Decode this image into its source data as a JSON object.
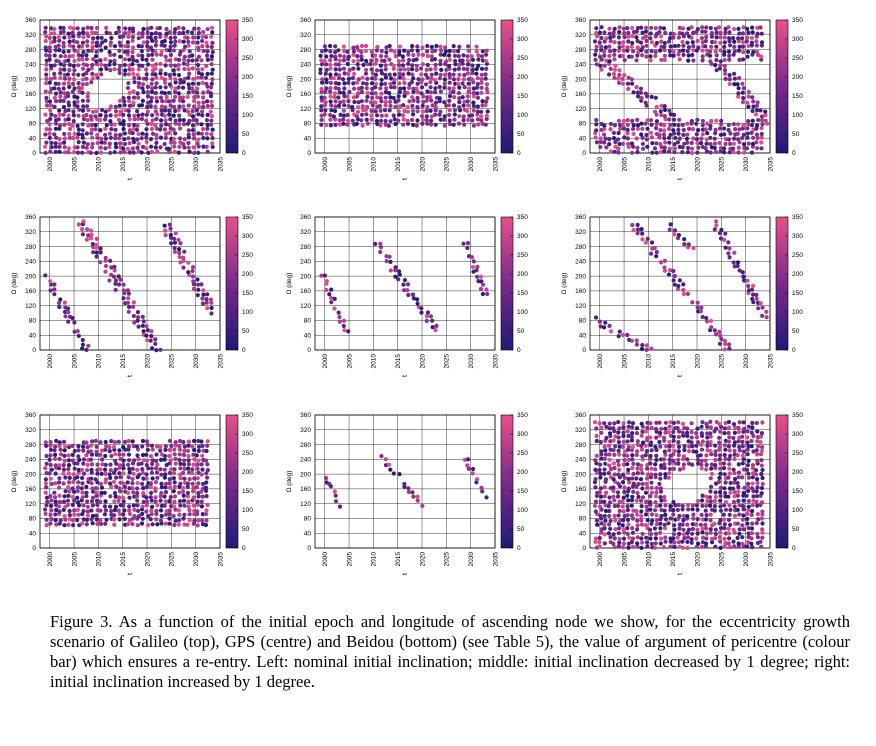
{
  "caption": "Figure 3. As a function of the initial epoch and longitude of ascending node we show, for the eccentricity growth scenario of Galileo (top), GPS (centre) and Beidou (bottom) (see Table 5), the value of argument of pericentre (colour bar) which ensures a re-entry. Left: nominal initial inclination; middle: initial inclination decreased by 1 degree; right: initial inclination increased by 1 degree.",
  "colors": {
    "low": "#1f1a78",
    "mid": "#7a2a8c",
    "high": "#e8508a"
  },
  "chart_data": [
    {
      "type": "scatter",
      "panel": "galileo-nominal",
      "xlabel": "t",
      "ylabel": "Ω (deg)",
      "xticks": [
        "2000",
        "2005",
        "2010",
        "2015",
        "2020",
        "2025",
        "2030",
        "2035"
      ],
      "yticks": [
        "0",
        "40",
        "80",
        "120",
        "160",
        "200",
        "240",
        "280",
        "320",
        "360"
      ],
      "xlim": [
        1998,
        2035
      ],
      "ylim": [
        0,
        360
      ],
      "colorbar": {
        "ticks": [
          "0",
          "50",
          "100",
          "150",
          "200",
          "250",
          "300",
          "350"
        ],
        "range": [
          0,
          350
        ]
      },
      "grid": true,
      "regions": [
        {
          "type": "box",
          "x": [
            1999,
            2034
          ],
          "y": [
            0,
            340
          ]
        }
      ],
      "holes": [
        {
          "type": "ellipse",
          "cx": 2012,
          "cy": 170,
          "rx": 4.5,
          "ry": 40,
          "tilt": -0.6
        }
      ]
    },
    {
      "type": "scatter",
      "panel": "galileo-minus1",
      "xlabel": "t",
      "ylabel": "Ω (deg)",
      "xticks": [
        "2000",
        "2005",
        "2010",
        "2015",
        "2020",
        "2025",
        "2030",
        "2035"
      ],
      "yticks": [
        "0",
        "40",
        "80",
        "120",
        "160",
        "200",
        "240",
        "280",
        "320",
        "360"
      ],
      "xlim": [
        1998,
        2035
      ],
      "ylim": [
        0,
        360
      ],
      "colorbar": {
        "ticks": [
          "0",
          "50",
          "100",
          "150",
          "200",
          "250",
          "300",
          "350"
        ],
        "range": [
          0,
          350
        ]
      },
      "grid": true,
      "regions": [
        {
          "type": "box",
          "x": [
            1999,
            2034
          ],
          "y": [
            70,
            290
          ]
        }
      ],
      "holes": []
    },
    {
      "type": "scatter",
      "panel": "galileo-plus1",
      "xlabel": "t",
      "ylabel": "Ω (deg)",
      "xticks": [
        "2000",
        "2005",
        "2010",
        "2015",
        "2020",
        "2025",
        "2030",
        "2035"
      ],
      "yticks": [
        "0",
        "40",
        "80",
        "120",
        "160",
        "200",
        "240",
        "280",
        "320",
        "360"
      ],
      "xlim": [
        1998,
        2035
      ],
      "ylim": [
        0,
        360
      ],
      "colorbar": {
        "ticks": [
          "0",
          "50",
          "100",
          "150",
          "200",
          "250",
          "300",
          "350"
        ],
        "range": [
          0,
          350
        ]
      },
      "grid": true,
      "regions": [
        {
          "type": "box",
          "x": [
            1999,
            2034
          ],
          "y": [
            0,
            90
          ]
        },
        {
          "type": "box",
          "x": [
            1999,
            2034
          ],
          "y": [
            250,
            345
          ]
        },
        {
          "type": "band",
          "p1": [
            2000,
            250
          ],
          "p2": [
            2015,
            90
          ],
          "w": 35
        },
        {
          "type": "band",
          "p1": [
            2024,
            250
          ],
          "p2": [
            2034,
            90
          ],
          "w": 35
        }
      ],
      "holes": []
    },
    {
      "type": "scatter",
      "panel": "gps-nominal",
      "xlabel": "t",
      "ylabel": "Ω (deg)",
      "xticks": [
        "2000",
        "2005",
        "2010",
        "2015",
        "2020",
        "2025",
        "2030",
        "2035"
      ],
      "yticks": [
        "0",
        "40",
        "80",
        "120",
        "160",
        "200",
        "240",
        "280",
        "320",
        "360"
      ],
      "xlim": [
        1998,
        2035
      ],
      "ylim": [
        0,
        360
      ],
      "colorbar": {
        "ticks": [
          "0",
          "50",
          "100",
          "150",
          "200",
          "250",
          "300",
          "350"
        ],
        "range": [
          0,
          350
        ]
      },
      "grid": true,
      "regions": [
        {
          "type": "band",
          "p1": [
            1999.3,
            200
          ],
          "p2": [
            2007.5,
            0
          ],
          "w": 22
        },
        {
          "type": "band",
          "p1": [
            2007,
            335
          ],
          "p2": [
            2022,
            0
          ],
          "w": 32
        },
        {
          "type": "band",
          "p1": [
            2024,
            335
          ],
          "p2": [
            2033,
            110
          ],
          "w": 28
        }
      ],
      "holes": []
    },
    {
      "type": "scatter",
      "panel": "gps-minus1",
      "xlabel": "t",
      "ylabel": "Ω (deg)",
      "xticks": [
        "2000",
        "2005",
        "2010",
        "2015",
        "2020",
        "2025",
        "2030",
        "2035"
      ],
      "yticks": [
        "0",
        "40",
        "80",
        "120",
        "160",
        "200",
        "240",
        "280",
        "320",
        "360"
      ],
      "xlim": [
        1998,
        2035
      ],
      "ylim": [
        0,
        360
      ],
      "colorbar": {
        "ticks": [
          "0",
          "50",
          "100",
          "150",
          "200",
          "250",
          "300",
          "350"
        ],
        "range": [
          0,
          350
        ]
      },
      "grid": true,
      "regions": [
        {
          "type": "band",
          "p1": [
            1999.5,
            200
          ],
          "p2": [
            2004.5,
            50
          ],
          "w": 16
        },
        {
          "type": "band",
          "p1": [
            2010.5,
            290
          ],
          "p2": [
            2023,
            55
          ],
          "w": 22
        },
        {
          "type": "band",
          "p1": [
            2029,
            290
          ],
          "p2": [
            2033,
            150
          ],
          "w": 18
        }
      ],
      "holes": []
    },
    {
      "type": "scatter",
      "panel": "gps-plus1",
      "xlabel": "t",
      "ylabel": "Ω (deg)",
      "xticks": [
        "2000",
        "2005",
        "2010",
        "2015",
        "2020",
        "2025",
        "2030",
        "2035"
      ],
      "yticks": [
        "0",
        "40",
        "80",
        "120",
        "160",
        "200",
        "240",
        "280",
        "320",
        "360"
      ],
      "xlim": [
        1998,
        2035
      ],
      "ylim": [
        0,
        360
      ],
      "colorbar": {
        "ticks": [
          "0",
          "50",
          "100",
          "150",
          "200",
          "250",
          "300",
          "350"
        ],
        "range": [
          0,
          350
        ]
      },
      "grid": true,
      "regions": [
        {
          "type": "band",
          "p1": [
            1999,
            80
          ],
          "p2": [
            2010,
            0
          ],
          "w": 18
        },
        {
          "type": "band",
          "p1": [
            2007,
            340
          ],
          "p2": [
            2026,
            10
          ],
          "w": 22
        },
        {
          "type": "band",
          "p1": [
            2024,
            340
          ],
          "p2": [
            2034,
            90
          ],
          "w": 22
        },
        {
          "type": "band",
          "p1": [
            2014,
            340
          ],
          "p2": [
            2019,
            270
          ],
          "w": 14
        }
      ],
      "holes": []
    },
    {
      "type": "scatter",
      "panel": "beidou-nominal",
      "xlabel": "t",
      "ylabel": "Ω (deg)",
      "xticks": [
        "2000",
        "2005",
        "2010",
        "2015",
        "2020",
        "2025",
        "2030",
        "2035"
      ],
      "yticks": [
        "0",
        "40",
        "80",
        "120",
        "160",
        "200",
        "240",
        "280",
        "320",
        "360"
      ],
      "xlim": [
        1998,
        2035
      ],
      "ylim": [
        0,
        360
      ],
      "colorbar": {
        "ticks": [
          "0",
          "50",
          "100",
          "150",
          "200",
          "250",
          "300",
          "350"
        ],
        "range": [
          0,
          350
        ]
      },
      "grid": true,
      "regions": [
        {
          "type": "box",
          "x": [
            1999,
            2033
          ],
          "y": [
            60,
            290
          ]
        }
      ],
      "holes": []
    },
    {
      "type": "scatter",
      "panel": "beidou-minus1",
      "xlabel": "t",
      "ylabel": "Ω (deg)",
      "xticks": [
        "2000",
        "2005",
        "2010",
        "2015",
        "2020",
        "2025",
        "2030",
        "2035"
      ],
      "yticks": [
        "0",
        "40",
        "80",
        "120",
        "160",
        "200",
        "240",
        "280",
        "320",
        "360"
      ],
      "xlim": [
        1998,
        2035
      ],
      "ylim": [
        0,
        360
      ],
      "colorbar": {
        "ticks": [
          "0",
          "50",
          "100",
          "150",
          "200",
          "250",
          "300",
          "350"
        ],
        "range": [
          0,
          350
        ]
      },
      "grid": true,
      "regions": [
        {
          "type": "band",
          "p1": [
            1999.7,
            195
          ],
          "p2": [
            2003.5,
            110
          ],
          "w": 13
        },
        {
          "type": "band",
          "p1": [
            2012,
            245
          ],
          "p2": [
            2020,
            115
          ],
          "w": 14
        },
        {
          "type": "band",
          "p1": [
            2029,
            240
          ],
          "p2": [
            2033,
            140
          ],
          "w": 12
        }
      ],
      "holes": []
    },
    {
      "type": "scatter",
      "panel": "beidou-plus1",
      "xlabel": "t",
      "ylabel": "Ω (deg)",
      "xticks": [
        "2000",
        "2005",
        "2010",
        "2015",
        "2020",
        "2025",
        "2030",
        "2035"
      ],
      "yticks": [
        "0",
        "40",
        "80",
        "120",
        "160",
        "200",
        "240",
        "280",
        "320",
        "360"
      ],
      "xlim": [
        1998,
        2035
      ],
      "ylim": [
        0,
        360
      ],
      "colorbar": {
        "ticks": [
          "0",
          "50",
          "100",
          "150",
          "200",
          "250",
          "300",
          "350"
        ],
        "range": [
          0,
          350
        ]
      },
      "grid": true,
      "regions": [
        {
          "type": "box",
          "x": [
            1999,
            2034
          ],
          "y": [
            0,
            345
          ]
        }
      ],
      "holes": [
        {
          "type": "ellipse",
          "cx": 2018,
          "cy": 170,
          "rx": 5,
          "ry": 45,
          "tilt": -0.4
        }
      ]
    }
  ]
}
